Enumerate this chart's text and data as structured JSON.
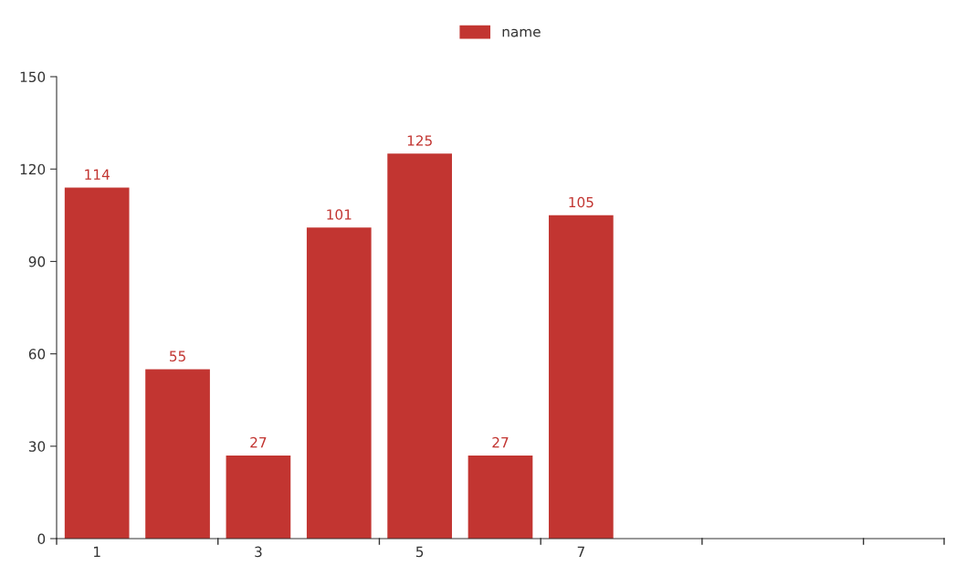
{
  "chart_data": {
    "type": "bar",
    "categories": [
      "1",
      null,
      "3",
      null,
      "5",
      null,
      "7",
      null,
      null,
      null,
      null
    ],
    "series": [
      {
        "name": "name",
        "color": "#c23531",
        "values": [
          114,
          55,
          27,
          101,
          125,
          27,
          105,
          null,
          null,
          null,
          null
        ]
      }
    ],
    "ylim": [
      0,
      150
    ],
    "yticks": [
      0,
      30,
      60,
      90,
      120,
      150
    ],
    "data_labels": true,
    "legend": "top",
    "grid": false
  }
}
